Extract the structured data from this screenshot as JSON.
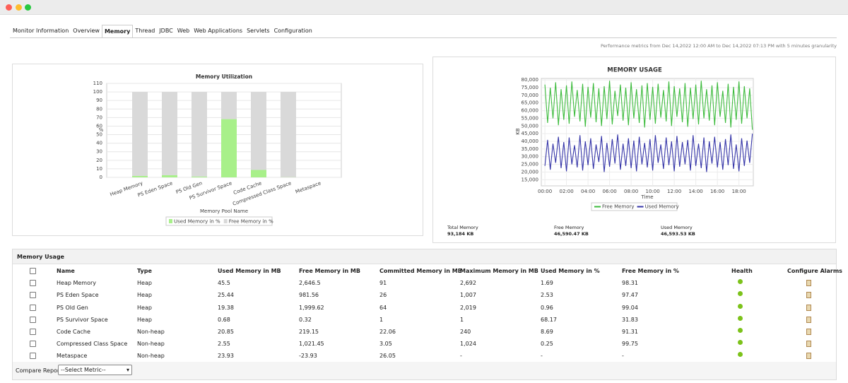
{
  "tabs": [
    "Monitor Information",
    "Overview",
    "Memory",
    "Thread",
    "JDBC",
    "Web",
    "Web Applications",
    "Servlets",
    "Configuration"
  ],
  "active_tab": 2,
  "note": "Performance metrics from Dec 14,2022 12:00 AM to Dec 14,2022 07:13 PM with 5 minutes granularity",
  "chart_data": [
    {
      "type": "bar",
      "stacked": true,
      "title": "Memory Utilization",
      "x_label": "Memory Pool Name",
      "y_label": "%",
      "categories": [
        "Heap Memory",
        "PS Eden Space",
        "PS Old Gen",
        "PS Survivor Space",
        "Code Cache",
        "Compressed Class Space",
        "Metaspace"
      ],
      "series": [
        {
          "name": "Used Memory in %",
          "color": "#a8f08a",
          "values": [
            1.69,
            2.53,
            0.96,
            68.17,
            8.69,
            0.25,
            null
          ]
        },
        {
          "name": "Free Memory in %",
          "color": "#d9d9d9",
          "values": [
            98.31,
            97.47,
            99.04,
            31.83,
            91.31,
            99.75,
            null
          ]
        }
      ],
      "ylim": [
        0,
        110
      ],
      "yticks": [
        0,
        10,
        20,
        30,
        40,
        50,
        60,
        70,
        80,
        90,
        100,
        110
      ],
      "grid": true
    },
    {
      "type": "line",
      "title": "MEMORY USAGE",
      "x_label": "Time",
      "y_label": "KB",
      "x": [
        0,
        15,
        30,
        45,
        60,
        75,
        90,
        105,
        120,
        135,
        150,
        165,
        180,
        195,
        210,
        225,
        240,
        255,
        270,
        285,
        300,
        315,
        330,
        345,
        360,
        375,
        390,
        405,
        420,
        435,
        450,
        465,
        480,
        495,
        510,
        525,
        540,
        555,
        570,
        585,
        600,
        615,
        630,
        645,
        660,
        675,
        690,
        705,
        720,
        735,
        750,
        765,
        780,
        795,
        810,
        825,
        840,
        855,
        870,
        885,
        900,
        915,
        930,
        945,
        960,
        975,
        990,
        1005,
        1020,
        1035,
        1050,
        1065,
        1080,
        1095,
        1110,
        1125,
        1140,
        1155
      ],
      "series": [
        {
          "name": "Free Memory",
          "color": "#3dbb3d",
          "values": [
            77000,
            52000,
            75000,
            55000,
            78500,
            50500,
            74000,
            54000,
            76500,
            51500,
            79000,
            56000,
            73500,
            53000,
            77500,
            49500,
            75500,
            55500,
            78000,
            52500,
            74500,
            50000,
            76000,
            54500,
            79500,
            51000,
            73000,
            56500,
            77000,
            53500,
            75000,
            50500,
            78500,
            55000,
            74000,
            52000,
            76500,
            49000,
            78000,
            54000,
            75500,
            51500,
            77500,
            55500,
            73500,
            53000,
            79000,
            50000,
            76000,
            56000,
            74500,
            52500,
            78000,
            49500,
            75000,
            54500,
            77000,
            51000,
            79500,
            55000,
            74000,
            53500,
            76500,
            50500,
            78500,
            56000,
            73000,
            52000,
            77500,
            49000,
            75500,
            54000,
            79000,
            51500,
            76000,
            55000,
            74500,
            47500
          ]
        },
        {
          "name": "Used Memory",
          "color": "#3535a8",
          "values": [
            24000,
            41000,
            21500,
            38500,
            26000,
            43000,
            22500,
            39500,
            20500,
            42500,
            25000,
            37500,
            23000,
            44000,
            21000,
            40000,
            24500,
            42000,
            22000,
            38000,
            26500,
            43500,
            20000,
            39000,
            23500,
            41500,
            25500,
            44500,
            21500,
            38500,
            24000,
            42000,
            22500,
            40500,
            20500,
            43000,
            25000,
            39000,
            23000,
            41500,
            21000,
            44000,
            26000,
            38000,
            22000,
            42500,
            24500,
            40000,
            20500,
            43500,
            23500,
            39500,
            25000,
            41000,
            21000,
            44000,
            24000,
            38500,
            22500,
            42500,
            20000,
            40000,
            25500,
            43000,
            23000,
            39500,
            21500,
            41500,
            24500,
            44500,
            22000,
            38000,
            20500,
            42000,
            24000,
            40500,
            26000,
            45000
          ]
        }
      ],
      "xlim": [
        -20,
        1160
      ],
      "xticks": [
        {
          "value": 0,
          "label": "00:00"
        },
        {
          "value": 120,
          "label": "02:00"
        },
        {
          "value": 240,
          "label": "04:00"
        },
        {
          "value": 360,
          "label": "06:00"
        },
        {
          "value": 480,
          "label": "08:00"
        },
        {
          "value": 600,
          "label": "10:00"
        },
        {
          "value": 720,
          "label": "12:00"
        },
        {
          "value": 840,
          "label": "14:00"
        },
        {
          "value": 960,
          "label": "16:00"
        },
        {
          "value": 1080,
          "label": "18:00"
        }
      ],
      "ylim": [
        11000,
        81000
      ],
      "yticks": [
        {
          "value": 15000,
          "label": "15,000"
        },
        {
          "value": 20000,
          "label": "20,000"
        },
        {
          "value": 25000,
          "label": "25,000"
        },
        {
          "value": 30000,
          "label": "30,000"
        },
        {
          "value": 35000,
          "label": "35,000"
        },
        {
          "value": 40000,
          "label": "40,000"
        },
        {
          "value": 45000,
          "label": "45,000"
        },
        {
          "value": 50000,
          "label": "50,000"
        },
        {
          "value": 55000,
          "label": "55,000"
        },
        {
          "value": 60000,
          "label": "60,000"
        },
        {
          "value": 65000,
          "label": "65,000"
        },
        {
          "value": 70000,
          "label": "70,000"
        },
        {
          "value": 75000,
          "label": "75,000"
        },
        {
          "value": 80000,
          "label": "80,000"
        }
      ],
      "grid": true
    }
  ],
  "summary": [
    {
      "label": "Total Memory",
      "value": "93,184 KB"
    },
    {
      "label": "Free Memory",
      "value": "46,590.47 KB"
    },
    {
      "label": "Used Memory",
      "value": "46,593.53 KB"
    }
  ],
  "table": {
    "title": "Memory Usage",
    "columns": [
      "Name",
      "Type",
      "Used Memory in MB",
      "Free Memory in MB",
      "Committed Memory in MB",
      "Maximum Memory in MB",
      "Used Memory in %",
      "Free Memory in %",
      "Health",
      "Configure Alarms"
    ],
    "health_color": "#7cc21a",
    "rows": [
      [
        "Heap Memory",
        "Heap",
        "45.5",
        "2,646.5",
        "91",
        "2,692",
        "1.69",
        "98.31"
      ],
      [
        "PS Eden Space",
        "Heap",
        "25.44",
        "981.56",
        "26",
        "1,007",
        "2.53",
        "97.47"
      ],
      [
        "PS Old Gen",
        "Heap",
        "19.38",
        "1,999.62",
        "64",
        "2,019",
        "0.96",
        "99.04"
      ],
      [
        "PS Survivor Space",
        "Heap",
        "0.68",
        "0.32",
        "1",
        "1",
        "68.17",
        "31.83"
      ],
      [
        "Code Cache",
        "Non-heap",
        "20.85",
        "219.15",
        "22.06",
        "240",
        "8.69",
        "91.31"
      ],
      [
        "Compressed Class Space",
        "Non-heap",
        "2.55",
        "1,021.45",
        "3.05",
        "1,024",
        "0.25",
        "99.75"
      ],
      [
        "Metaspace",
        "Non-heap",
        "23.93",
        "-23.93",
        "26.05",
        "-",
        "-",
        "-"
      ]
    ]
  },
  "compare": {
    "label": "Compare Reports",
    "select": "--Select Metric--"
  }
}
